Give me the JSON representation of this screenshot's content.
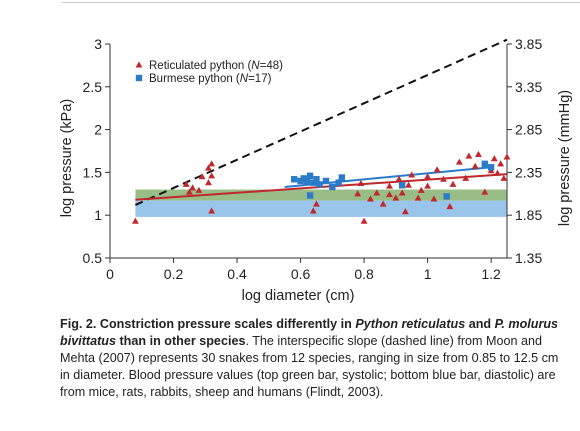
{
  "chart_data": {
    "type": "scatter",
    "xlabel": "log diameter (cm)",
    "ylabel_left": "log pressure (kPa)",
    "ylabel_right": "log pressure (mmHg)",
    "xlim": [
      0,
      1.25
    ],
    "ylim_left": [
      0.5,
      3
    ],
    "ylim_right": [
      1.35,
      3.85
    ],
    "x_ticks": [
      "0",
      "0.2",
      "0.4",
      "0.6",
      "0.8",
      "1",
      "1.2"
    ],
    "y_ticks_left": [
      "0.5",
      "1",
      "1.5",
      "2",
      "2.5",
      "3"
    ],
    "y_ticks_right": [
      "1.35",
      "1.85",
      "2.35",
      "2.85",
      "3.35",
      "3.85"
    ],
    "legend": [
      {
        "marker": "triangle",
        "color": "#c0282d",
        "label_prefix": "Reticulated python (",
        "n_symbol": "N",
        "n_value": "=48)"
      },
      {
        "marker": "square",
        "color": "#2b7bc8",
        "label_prefix": "Burmese python (",
        "n_symbol": "N",
        "n_value": "=17)"
      }
    ],
    "bands": [
      {
        "name": "systolic",
        "color": "#8db67a",
        "y_range": [
          1.17,
          1.3
        ]
      },
      {
        "name": "diastolic",
        "color": "#8fbfe8",
        "y_range": [
          0.98,
          1.17
        ]
      }
    ],
    "reference_lines": [
      {
        "name": "interspecific slope",
        "style": "dashed",
        "color": "#111111",
        "points": [
          [
            0.08,
            1.12
          ],
          [
            1.25,
            3.05
          ]
        ]
      },
      {
        "name": "reticulated fit",
        "style": "solid",
        "color": "#c0282d",
        "points": [
          [
            0.08,
            1.18
          ],
          [
            1.25,
            1.48
          ]
        ]
      },
      {
        "name": "burmese fit",
        "style": "solid",
        "color": "#2b7bc8",
        "points": [
          [
            0.55,
            1.33
          ],
          [
            1.2,
            1.56
          ]
        ]
      }
    ],
    "series": [
      {
        "marker": "triangle",
        "color": "#c0282d",
        "points": [
          [
            0.08,
            0.93
          ],
          [
            0.24,
            1.36
          ],
          [
            0.26,
            1.32
          ],
          [
            0.25,
            1.27
          ],
          [
            0.28,
            1.29
          ],
          [
            0.29,
            1.45
          ],
          [
            0.31,
            1.55
          ],
          [
            0.32,
            1.6
          ],
          [
            0.32,
            1.46
          ],
          [
            0.31,
            1.38
          ],
          [
            0.32,
            1.05
          ],
          [
            0.64,
            1.05
          ],
          [
            0.65,
            1.13
          ],
          [
            0.78,
            1.25
          ],
          [
            0.79,
            1.37
          ],
          [
            0.8,
            0.93
          ],
          [
            0.82,
            1.19
          ],
          [
            0.84,
            1.26
          ],
          [
            0.86,
            1.13
          ],
          [
            0.88,
            1.24
          ],
          [
            0.88,
            1.34
          ],
          [
            0.9,
            1.2
          ],
          [
            0.91,
            1.42
          ],
          [
            0.92,
            1.26
          ],
          [
            0.93,
            1.04
          ],
          [
            0.94,
            1.35
          ],
          [
            0.95,
            1.47
          ],
          [
            0.97,
            1.2
          ],
          [
            0.98,
            1.29
          ],
          [
            1.0,
            1.34
          ],
          [
            1.0,
            1.45
          ],
          [
            1.02,
            1.19
          ],
          [
            1.03,
            1.53
          ],
          [
            1.05,
            1.42
          ],
          [
            1.07,
            1.1
          ],
          [
            1.08,
            1.36
          ],
          [
            1.1,
            1.62
          ],
          [
            1.12,
            1.43
          ],
          [
            1.13,
            1.69
          ],
          [
            1.15,
            1.57
          ],
          [
            1.16,
            1.71
          ],
          [
            1.18,
            1.27
          ],
          [
            1.2,
            1.52
          ],
          [
            1.21,
            1.66
          ],
          [
            1.22,
            1.49
          ],
          [
            1.23,
            1.6
          ],
          [
            1.24,
            1.43
          ],
          [
            1.25,
            1.68
          ]
        ]
      },
      {
        "marker": "square",
        "color": "#2b7bc8",
        "points": [
          [
            0.58,
            1.42
          ],
          [
            0.6,
            1.4
          ],
          [
            0.61,
            1.43
          ],
          [
            0.62,
            1.39
          ],
          [
            0.63,
            1.46
          ],
          [
            0.64,
            1.38
          ],
          [
            0.65,
            1.42
          ],
          [
            0.66,
            1.36
          ],
          [
            0.68,
            1.4
          ],
          [
            0.7,
            1.33
          ],
          [
            0.72,
            1.38
          ],
          [
            0.73,
            1.44
          ],
          [
            0.63,
            1.23
          ],
          [
            0.92,
            1.35
          ],
          [
            1.06,
            1.22
          ],
          [
            1.18,
            1.6
          ],
          [
            1.2,
            1.56
          ]
        ]
      }
    ]
  },
  "caption": {
    "fig_label": "Fig. 2.",
    "bold_1": " Constriction pressure scales differently in ",
    "italic_1": "Python reticulatus",
    "bold_2": " and ",
    "italic_2": "P. molurus bivittatus",
    "bold_3": " than in other species",
    "rest": ". The interspecific slope (dashed line) from Moon and Mehta (2007) represents 30 snakes from 12 species, ranging in size from 0.85 to 12.5 cm in diameter. Blood pressure values (top green bar, systolic; bottom blue bar, diastolic) are from mice, rats, rabbits, sheep and humans (Flindt, 2003)."
  }
}
